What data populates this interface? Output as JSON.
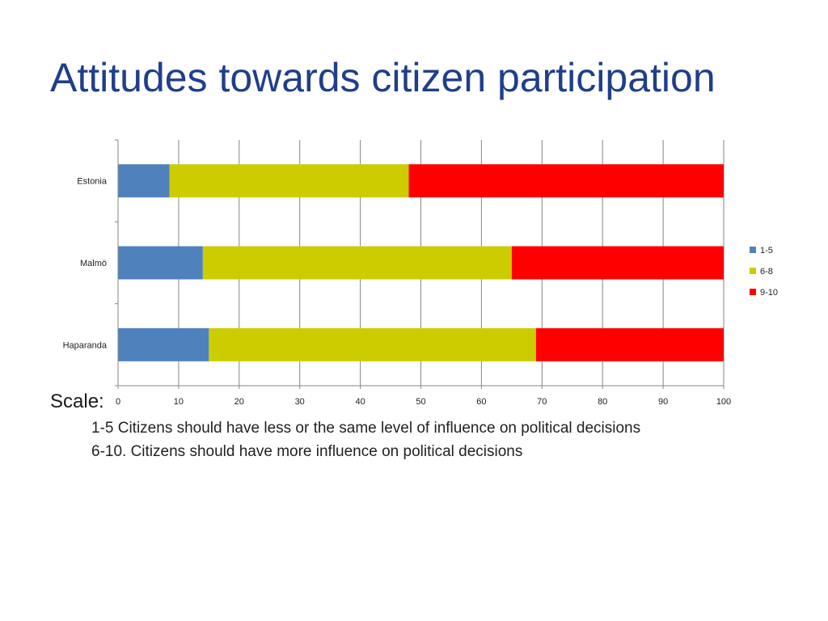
{
  "slide": {
    "title": "Attitudes towards citizen participation"
  },
  "scale": {
    "heading": "Scale:",
    "lines": [
      "1-5 Citizens should have less or the same level of influence on political decisions",
      "6-10. Citizens should have more influence on political decisions"
    ]
  },
  "colors": {
    "title": "#1f3f8a",
    "series": [
      "#4f81bd",
      "#cccc00",
      "#ff0000"
    ],
    "grid": "#868686"
  },
  "chart_data": {
    "type": "bar",
    "orientation": "horizontal",
    "stacked": true,
    "title": "",
    "xlabel": "",
    "ylabel": "",
    "categories": [
      "Estonia",
      "Malmö",
      "Haparanda"
    ],
    "series": [
      {
        "name": "1-5",
        "values": [
          8.5,
          14,
          15
        ]
      },
      {
        "name": "6-8",
        "values": [
          39.5,
          51,
          54
        ]
      },
      {
        "name": "9-10",
        "values": [
          52,
          35,
          31
        ]
      }
    ],
    "xlim": [
      0,
      100
    ],
    "xticks": [
      0,
      10,
      20,
      30,
      40,
      50,
      60,
      70,
      80,
      90,
      100
    ],
    "grid": true,
    "legend": "right"
  }
}
